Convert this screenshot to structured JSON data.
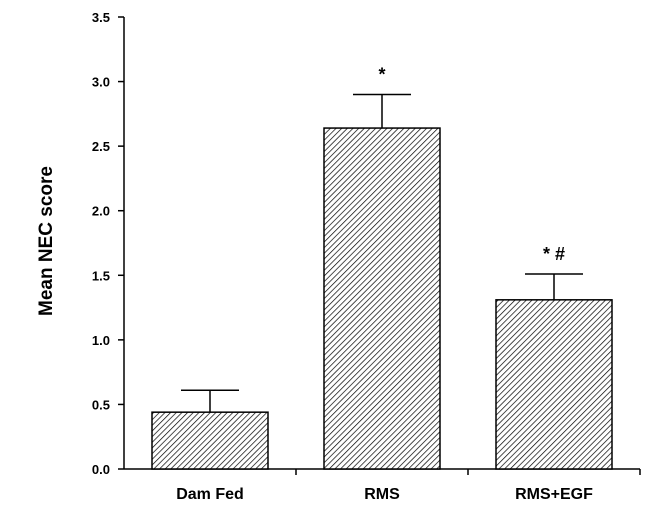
{
  "chart_data": {
    "type": "bar",
    "title": "",
    "xlabel": "",
    "ylabel": "Mean NEC score",
    "ylim": [
      0,
      3.5
    ],
    "yticks": [
      "0.0",
      "0.5",
      "1.0",
      "1.5",
      "2.0",
      "2.5",
      "3.0",
      "3.5"
    ],
    "grid": false,
    "bar_fill": "diagonal hatch",
    "colors": {
      "bar_stroke": "#000000",
      "hatch": "#000000",
      "background": "#ffffff"
    },
    "categories": [
      "Dam Fed",
      "RMS",
      "RMS+EGF"
    ],
    "values": [
      0.44,
      2.64,
      1.31
    ],
    "error_upper": [
      0.17,
      0.26,
      0.2
    ],
    "annotations": [
      "",
      "*",
      "* #"
    ]
  }
}
